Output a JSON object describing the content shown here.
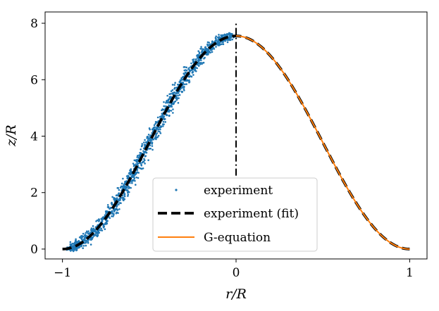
{
  "chart_data": {
    "type": "scatter",
    "title": "",
    "xlabel": "r/R",
    "ylabel": "z/R",
    "xlim": [
      -1.1,
      1.1
    ],
    "ylim": [
      -0.35,
      8.4
    ],
    "xticks": [
      -1,
      0,
      1
    ],
    "xtick_labels": [
      "−1",
      "0",
      "1"
    ],
    "yticks": [
      0,
      2,
      4,
      6,
      8
    ],
    "ytick_labels": [
      "0",
      "2",
      "4",
      "6",
      "8"
    ],
    "grid": false,
    "legend_position": "lower-center",
    "legend": [
      "experiment",
      "experiment (fit)",
      "G-equation"
    ],
    "colors": {
      "experiment": "#1f77b4",
      "fit": "#000000",
      "g_equation": "#ff7f0e",
      "axis_line": "#000000"
    },
    "series": [
      {
        "name": "experiment",
        "kind": "scatter",
        "x_range": [
          -0.97,
          -0.02
        ],
        "noise_z": 0.12,
        "count": 1400
      },
      {
        "name": "experiment (fit)",
        "kind": "line",
        "style": "dashed",
        "formula": "z = 7.55 * cos^2(pi*r/2)",
        "x_range": [
          -1,
          1
        ],
        "peak_z": 7.55
      },
      {
        "name": "G-equation",
        "kind": "line",
        "style": "solid",
        "formula": "z = 7.55 * cos^2(pi*r/2)",
        "x_range": [
          0,
          1
        ],
        "peak_z": 7.55
      },
      {
        "name": "axis",
        "kind": "vline",
        "style": "dashdot",
        "x": 0,
        "z_range": [
          2.6,
          8.0
        ]
      }
    ]
  }
}
